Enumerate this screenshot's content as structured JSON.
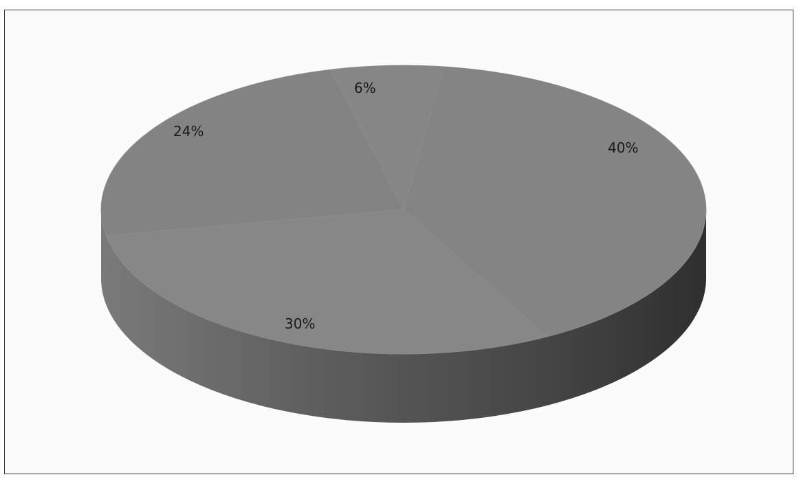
{
  "chart_data": {
    "type": "pie",
    "style": "3d",
    "title": "",
    "legend": "none",
    "slices": [
      {
        "label": "6%",
        "value": 6
      },
      {
        "label": "40%",
        "value": 40
      },
      {
        "label": "30%",
        "value": 30
      },
      {
        "label": "24%",
        "value": 24
      }
    ],
    "colors": {
      "top": "#858585",
      "side_light": "#6f6f6f",
      "side_dark": "#3a3a3a"
    }
  }
}
